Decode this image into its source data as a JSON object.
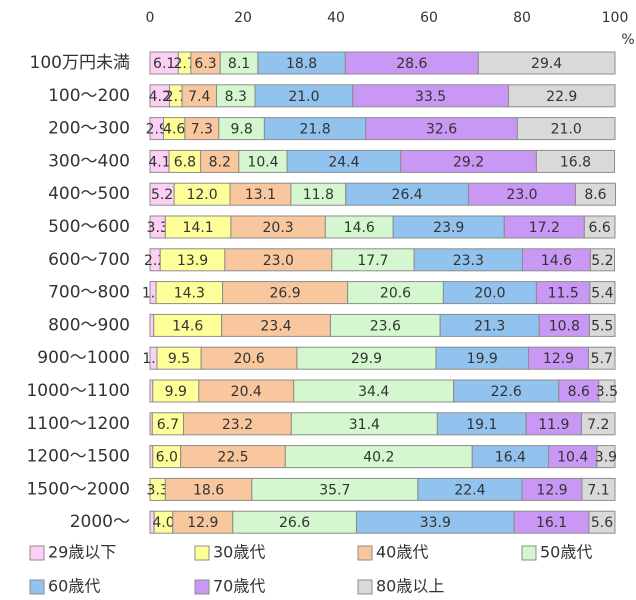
{
  "chart_data": {
    "type": "stacked_bar_horizontal",
    "categories": [
      "100万円未満",
      "100～200",
      "200～300",
      "300～400",
      "400～500",
      "500～600",
      "600～700",
      "700～800",
      "800～900",
      "900～1000",
      "1000～1100",
      "1100～1200",
      "1200～1500",
      "1500～2000",
      "2000～"
    ],
    "xlim": [
      0,
      100
    ],
    "xticks": [
      0,
      20,
      40,
      60,
      80,
      100
    ],
    "xlabel": "%",
    "grid": false,
    "legend": "bottom",
    "series": [
      {
        "name": "29歳以下",
        "color": "#fbd0f4",
        "values": [
          6.1,
          4.2,
          2.9,
          4.1,
          5.2,
          3.3,
          2.2,
          1.3,
          0.8,
          1.5,
          0.6,
          0.5,
          0.6,
          0,
          0.9
        ],
        "value_labels": [
          "6.1",
          "4.2",
          "2.9",
          "4.1",
          "5.2",
          "3.3",
          "2.2",
          "1.3",
          null,
          "1.5",
          null,
          null,
          null,
          null,
          null
        ]
      },
      {
        "name": "30歳代",
        "color": "#ffff99",
        "values": [
          2.7,
          2.7,
          4.6,
          6.8,
          12.0,
          14.1,
          13.9,
          14.3,
          14.6,
          9.5,
          9.9,
          6.7,
          6.0,
          3.3,
          4.0
        ],
        "value_labels": [
          "2.7",
          "2.7",
          "4.6",
          "6.8",
          "12.0",
          "14.1",
          "13.9",
          "14.3",
          "14.6",
          "9.5",
          "9.9",
          "6.7",
          "6.0",
          "3.3",
          "4.0"
        ]
      },
      {
        "name": "40歳代",
        "color": "#f9c79d",
        "values": [
          6.3,
          7.4,
          7.3,
          8.2,
          13.1,
          20.3,
          23.0,
          26.9,
          23.4,
          20.6,
          20.4,
          23.2,
          22.5,
          18.6,
          12.9
        ],
        "value_labels": [
          "6.3",
          "7.4",
          "7.3",
          "8.2",
          "13.1",
          "20.3",
          "23.0",
          "26.9",
          "23.4",
          "20.6",
          "20.4",
          "23.2",
          "22.5",
          "18.6",
          "12.9"
        ]
      },
      {
        "name": "50歳代",
        "color": "#d4f7cf",
        "values": [
          8.1,
          8.3,
          9.8,
          10.4,
          11.8,
          14.6,
          17.7,
          20.6,
          23.6,
          29.9,
          34.4,
          31.4,
          40.2,
          35.7,
          26.6
        ],
        "value_labels": [
          "8.1",
          "8.3",
          "9.8",
          "10.4",
          "11.8",
          "14.6",
          "17.7",
          "20.6",
          "23.6",
          "29.9",
          "34.4",
          "31.4",
          "40.2",
          "35.7",
          "26.6"
        ]
      },
      {
        "name": "60歳代",
        "color": "#92c2ee",
        "values": [
          18.8,
          21.0,
          21.8,
          24.4,
          26.4,
          23.9,
          23.3,
          20.0,
          21.3,
          19.9,
          22.6,
          19.1,
          16.4,
          22.4,
          33.9
        ],
        "value_labels": [
          "18.8",
          "21.0",
          "21.8",
          "24.4",
          "26.4",
          "23.9",
          "23.3",
          "20.0",
          "21.3",
          "19.9",
          "22.6",
          "19.1",
          "16.4",
          "22.4",
          "33.9"
        ]
      },
      {
        "name": "70歳代",
        "color": "#c997f4",
        "values": [
          28.6,
          33.5,
          32.6,
          29.2,
          23.0,
          17.2,
          14.6,
          11.5,
          10.8,
          12.9,
          8.6,
          11.9,
          10.4,
          12.9,
          16.1
        ],
        "value_labels": [
          "28.6",
          "33.5",
          "32.6",
          "29.2",
          "23.0",
          "17.2",
          "14.6",
          "11.5",
          "10.8",
          "12.9",
          "8.6",
          "11.9",
          "10.4",
          "12.9",
          "16.1"
        ]
      },
      {
        "name": "80歳以上",
        "color": "#d9d9d9",
        "values": [
          29.4,
          22.9,
          21.0,
          16.8,
          8.6,
          6.6,
          5.2,
          5.4,
          5.5,
          5.7,
          3.5,
          7.2,
          3.9,
          7.1,
          5.6
        ],
        "value_labels": [
          "29.4",
          "22.9",
          "21.0",
          "16.8",
          "8.6",
          "6.6",
          "5.2",
          "5.4",
          "5.5",
          "5.7",
          "3.5",
          "7.2",
          "3.9",
          "7.1",
          "5.6"
        ]
      }
    ]
  }
}
